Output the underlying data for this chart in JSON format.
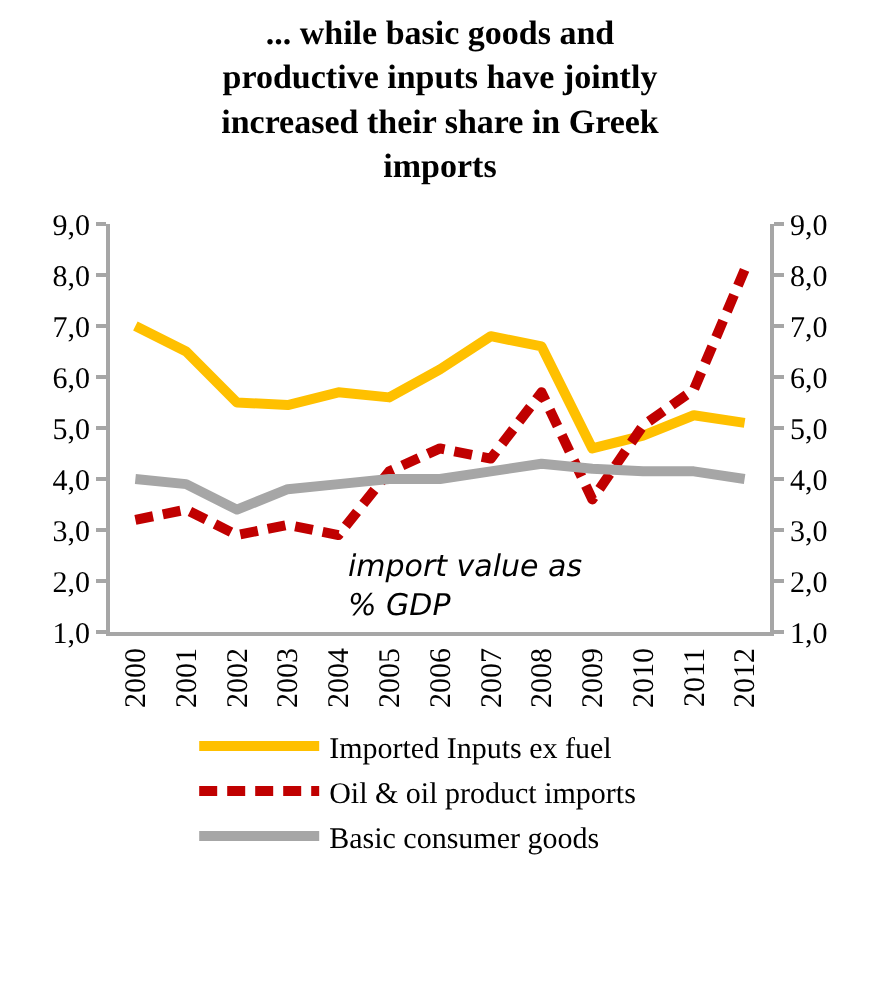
{
  "chart_data": {
    "type": "line",
    "title": "... while basic goods and productive inputs have jointly increased their share in Greek imports",
    "categories": [
      "2000",
      "2001",
      "2002",
      "2003",
      "2004",
      "2005",
      "2006",
      "2007",
      "2008",
      "2009",
      "2010",
      "2011",
      "2012"
    ],
    "series": [
      {
        "name": "Imported Inputs ex fuel",
        "color": "#ffc000",
        "line_style": "solid",
        "values": [
          7.0,
          6.5,
          5.5,
          5.45,
          5.7,
          5.6,
          6.15,
          6.8,
          6.6,
          4.6,
          4.85,
          5.25,
          5.1
        ]
      },
      {
        "name": "Oil & oil product imports",
        "color": "#c00000",
        "line_style": "dashed",
        "values": [
          3.2,
          3.4,
          2.9,
          3.1,
          2.9,
          4.15,
          4.6,
          4.4,
          5.7,
          3.6,
          5.05,
          5.75,
          8.1
        ]
      },
      {
        "name": "Basic consumer goods",
        "color": "#a6a6a6",
        "line_style": "solid",
        "values": [
          4.0,
          3.9,
          3.4,
          3.8,
          3.9,
          4.0,
          4.0,
          4.15,
          4.3,
          4.2,
          4.15,
          4.15,
          4.0
        ]
      }
    ],
    "ylim": [
      1,
      9
    ],
    "yticks": [
      {
        "value": 1,
        "label": "1,0"
      },
      {
        "value": 2,
        "label": "2,0"
      },
      {
        "value": 3,
        "label": "3,0"
      },
      {
        "value": 4,
        "label": "4,0"
      },
      {
        "value": 5,
        "label": "5,0"
      },
      {
        "value": 6,
        "label": "6,0"
      },
      {
        "value": 7,
        "label": "7,0"
      },
      {
        "value": 8,
        "label": "8,0"
      },
      {
        "value": 9,
        "label": "9,0"
      }
    ],
    "y2lim": [
      1,
      9
    ],
    "y2ticks": [
      {
        "value": 1,
        "label": "1,0"
      },
      {
        "value": 2,
        "label": "2,0"
      },
      {
        "value": 3,
        "label": "3,0"
      },
      {
        "value": 4,
        "label": "4,0"
      },
      {
        "value": 5,
        "label": "5,0"
      },
      {
        "value": 6,
        "label": "6,0"
      },
      {
        "value": 7,
        "label": "7,0"
      },
      {
        "value": 8,
        "label": "8,0"
      },
      {
        "value": 9,
        "label": "9,0"
      }
    ],
    "annotations": [
      "import value as % GDP"
    ],
    "legend": "bottom",
    "marker": "none"
  }
}
